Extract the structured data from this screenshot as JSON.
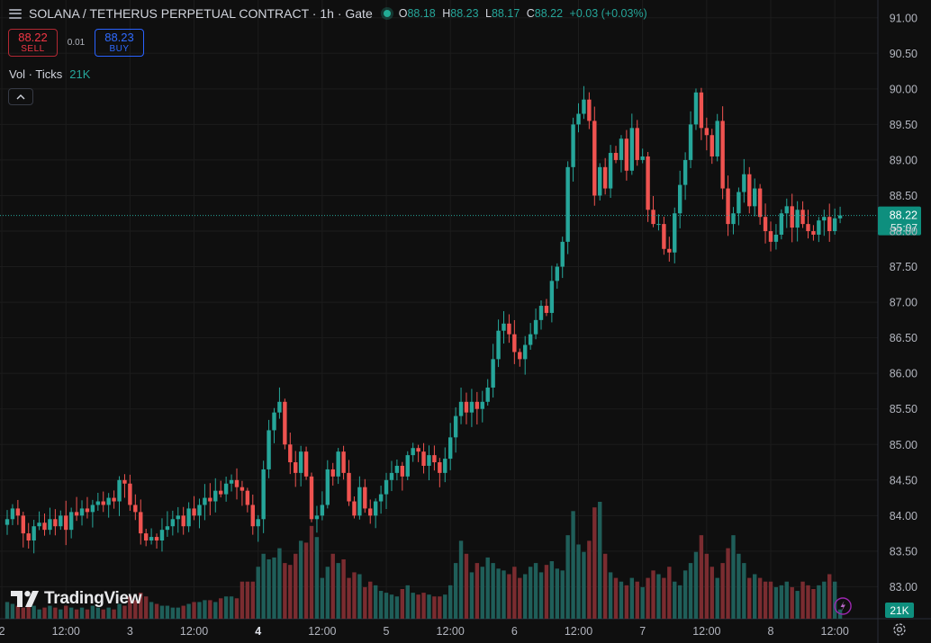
{
  "legend": {
    "title": "SOLANA / TETHERUS PERPETUAL CONTRACT · 1h · Gate",
    "o_label": "O",
    "o": "88.18",
    "h_label": "H",
    "h": "88.23",
    "l_label": "L",
    "l": "88.17",
    "c_label": "C",
    "c": "88.22",
    "change": "+0.03 (+0.03%)"
  },
  "trade": {
    "sell_price": "88.22",
    "sell_label": "SELL",
    "spread": "0.01",
    "buy_price": "88.23",
    "buy_label": "BUY"
  },
  "volume_legend": {
    "label": "Vol · Ticks",
    "value": "21K"
  },
  "logo_text": "TradingView",
  "colors": {
    "up": "#26a69a",
    "down": "#ef5350",
    "background": "#0f0f0f",
    "buy": "#2962ff"
  },
  "chart_data": {
    "type": "candlestick",
    "ylim": [
      82.55,
      91.25
    ],
    "y_ticks": [
      "91.00",
      "90.50",
      "90.00",
      "89.50",
      "89.00",
      "88.50",
      "88.00",
      "87.50",
      "87.00",
      "86.50",
      "86.00",
      "85.50",
      "85.00",
      "84.50",
      "84.00",
      "83.50",
      "83.00"
    ],
    "x_ticks": [
      {
        "bar": -1,
        "label": "2",
        "bold": false
      },
      {
        "bar": 11,
        "label": "12:00",
        "bold": false
      },
      {
        "bar": 23,
        "label": "3",
        "bold": false
      },
      {
        "bar": 35,
        "label": "12:00",
        "bold": false
      },
      {
        "bar": 47,
        "label": "4",
        "bold": true
      },
      {
        "bar": 59,
        "label": "12:00",
        "bold": false
      },
      {
        "bar": 71,
        "label": "5",
        "bold": false
      },
      {
        "bar": 83,
        "label": "12:00",
        "bold": false
      },
      {
        "bar": 95,
        "label": "6",
        "bold": false
      },
      {
        "bar": 107,
        "label": "12:00",
        "bold": false
      },
      {
        "bar": 119,
        "label": "7",
        "bold": false
      },
      {
        "bar": 131,
        "label": "12:00",
        "bold": false
      },
      {
        "bar": 143,
        "label": "8",
        "bold": false
      },
      {
        "bar": 155,
        "label": "12:00",
        "bold": false
      }
    ],
    "last_price": {
      "value": 88.22,
      "label": "88.22",
      "countdown": "55:07"
    },
    "volume_badge": "21K",
    "closes": [
      83.95,
      84.1,
      84.0,
      83.75,
      83.65,
      83.85,
      83.9,
      83.8,
      83.95,
      83.85,
      84.0,
      83.8,
      84.05,
      84.0,
      84.1,
      84.05,
      84.15,
      84.2,
      84.15,
      84.25,
      84.2,
      84.5,
      84.45,
      84.15,
      84.05,
      83.75,
      83.65,
      83.7,
      83.65,
      83.8,
      83.85,
      83.95,
      84.0,
      83.85,
      84.1,
      84.0,
      84.15,
      84.25,
      84.2,
      84.35,
      84.3,
      84.45,
      84.5,
      84.4,
      84.35,
      84.15,
      83.85,
      83.95,
      84.65,
      85.2,
      85.45,
      85.6,
      85.0,
      84.75,
      84.6,
      84.9,
      84.55,
      83.95,
      84.0,
      84.15,
      84.65,
      84.55,
      84.9,
      84.6,
      84.2,
      84.0,
      84.4,
      84.1,
      84.0,
      84.2,
      84.3,
      84.5,
      84.6,
      84.7,
      84.55,
      84.85,
      84.95,
      84.9,
      84.7,
      84.85,
      84.75,
      84.6,
      84.8,
      85.1,
      85.4,
      85.6,
      85.45,
      85.6,
      85.5,
      85.6,
      85.8,
      86.2,
      86.6,
      86.7,
      86.55,
      86.3,
      86.2,
      86.4,
      86.55,
      86.75,
      86.95,
      86.85,
      87.3,
      87.5,
      87.85,
      88.9,
      89.5,
      89.65,
      89.85,
      89.55,
      88.5,
      88.9,
      88.6,
      89.1,
      89.0,
      89.3,
      88.85,
      89.45,
      89.0,
      89.05,
      88.3,
      88.1,
      88.1,
      87.75,
      87.7,
      88.25,
      88.65,
      89.0,
      89.5,
      89.95,
      89.45,
      89.35,
      89.05,
      89.55,
      88.6,
      88.1,
      88.25,
      88.55,
      88.8,
      88.35,
      88.6,
      88.2,
      88.0,
      87.85,
      87.95,
      88.25,
      88.35,
      88.05,
      88.3,
      88.1,
      88.0,
      87.95,
      88.15,
      88.2,
      88.0,
      88.18,
      88.22
    ],
    "volumes": [
      0.09,
      0.08,
      0.07,
      0.06,
      0.08,
      0.07,
      0.05,
      0.06,
      0.07,
      0.06,
      0.05,
      0.07,
      0.06,
      0.05,
      0.06,
      0.05,
      0.07,
      0.06,
      0.05,
      0.06,
      0.05,
      0.08,
      0.07,
      0.12,
      0.1,
      0.14,
      0.12,
      0.09,
      0.08,
      0.07,
      0.07,
      0.06,
      0.06,
      0.07,
      0.08,
      0.09,
      0.09,
      0.1,
      0.1,
      0.09,
      0.11,
      0.12,
      0.12,
      0.11,
      0.2,
      0.2,
      0.2,
      0.28,
      0.35,
      0.32,
      0.33,
      0.38,
      0.3,
      0.29,
      0.35,
      0.42,
      0.41,
      0.5,
      0.44,
      0.22,
      0.28,
      0.35,
      0.3,
      0.32,
      0.22,
      0.25,
      0.24,
      0.17,
      0.2,
      0.18,
      0.15,
      0.14,
      0.13,
      0.12,
      0.16,
      0.18,
      0.14,
      0.13,
      0.14,
      0.13,
      0.12,
      0.12,
      0.13,
      0.18,
      0.3,
      0.42,
      0.35,
      0.25,
      0.3,
      0.28,
      0.33,
      0.3,
      0.27,
      0.26,
      0.24,
      0.28,
      0.22,
      0.24,
      0.28,
      0.3,
      0.25,
      0.29,
      0.31,
      0.27,
      0.26,
      0.45,
      0.58,
      0.4,
      0.36,
      0.42,
      0.6,
      0.63,
      0.35,
      0.25,
      0.22,
      0.2,
      0.18,
      0.22,
      0.2,
      0.17,
      0.22,
      0.26,
      0.24,
      0.22,
      0.28,
      0.2,
      0.18,
      0.26,
      0.3,
      0.36,
      0.45,
      0.35,
      0.28,
      0.22,
      0.3,
      0.38,
      0.45,
      0.35,
      0.3,
      0.22,
      0.24,
      0.22,
      0.2,
      0.2,
      0.17,
      0.18,
      0.2,
      0.17,
      0.15,
      0.2,
      0.18,
      0.16,
      0.18,
      0.2,
      0.24,
      0.2
    ]
  }
}
